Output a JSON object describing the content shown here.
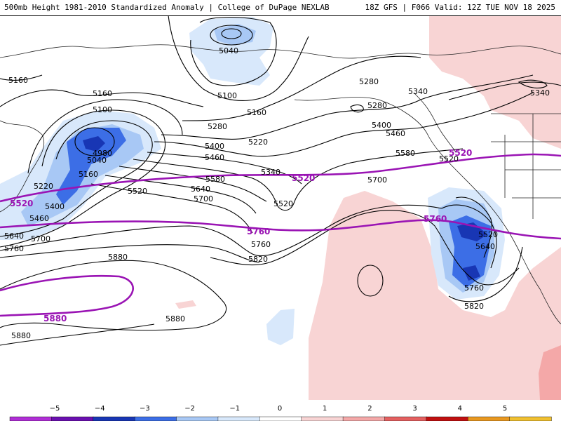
{
  "header": {
    "title": "500mb Height 1981-2010 Standardized Anomaly | College of DuPage NEXLAB",
    "model_info": "18Z GFS | F066 Valid: 12Z TUE NOV 18 2025"
  },
  "colors": {
    "contour": "#000000",
    "highlight_contour": "#9a14b4",
    "land_outline": "#222222"
  },
  "contour_labels": [
    "5160",
    "5160",
    "5100",
    "4980",
    "5040",
    "5160",
    "5220",
    "5400",
    "5460",
    "5520",
    "5640",
    "5760",
    "5700",
    "5040",
    "5100",
    "5160",
    "5220",
    "5280",
    "5280",
    "5400",
    "5460",
    "5340",
    "5580",
    "5640",
    "5700",
    "5520",
    "5880",
    "5880",
    "5880",
    "5760",
    "5820",
    "5280",
    "5340",
    "5400",
    "5460",
    "5580",
    "5700",
    "5520",
    "5340",
    "5640",
    "5760",
    "5820",
    "5520"
  ],
  "highlight_labels": [
    "5520",
    "5520",
    "5520",
    "5760",
    "5760",
    "5880"
  ],
  "colorbar": {
    "ticks": [
      "−5",
      "−4",
      "−3",
      "−2",
      "−1",
      "0",
      "1",
      "2",
      "3",
      "4",
      "5"
    ],
    "colors": [
      "#b02ed6",
      "#6a0fb0",
      "#1836b4",
      "#3c6ee6",
      "#a8c8f5",
      "#d8e8fb",
      "#ffffff",
      "#f8d4d4",
      "#f4a8a8",
      "#e46060",
      "#c01010",
      "#e89820",
      "#f0c030"
    ]
  }
}
